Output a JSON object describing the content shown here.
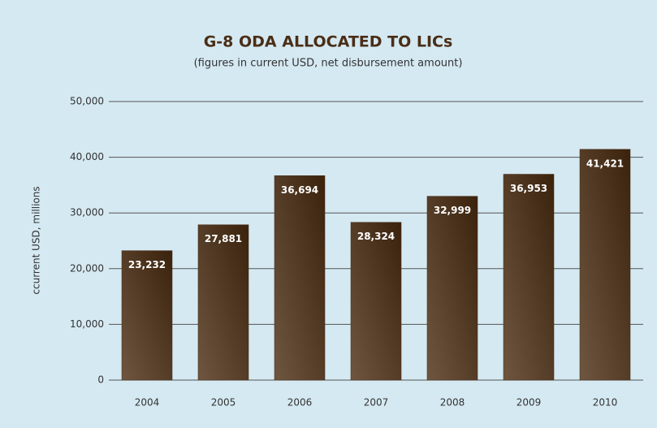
{
  "chart_data": {
    "type": "bar",
    "title": "G-8 ODA ALLOCATED TO LICs",
    "subtitle": "(figures in current USD, net disbursement amount)",
    "y_label": "ccurrent USD, millions",
    "categories": [
      "2004",
      "2005",
      "2006",
      "2007",
      "2008",
      "2009",
      "2010"
    ],
    "values": [
      23232,
      27881,
      36694,
      28324,
      32999,
      36953,
      41421
    ],
    "value_labels": [
      "23,232",
      "27,881",
      "36,694",
      "28,324",
      "32,999",
      "36,953",
      "41,421"
    ],
    "color": "#4a2e16",
    "ylim": [
      0,
      50000
    ],
    "yticks": [
      0,
      {
        "value": 10000,
        "label": "10,000"
      },
      {
        "value": 20000,
        "label": "20,000"
      },
      {
        "value": 30000,
        "label": "30,000"
      },
      {
        "value": 40000,
        "label": "40,000"
      },
      {
        "value": 50000,
        "label": "50,000"
      }
    ],
    "grid": true
  }
}
